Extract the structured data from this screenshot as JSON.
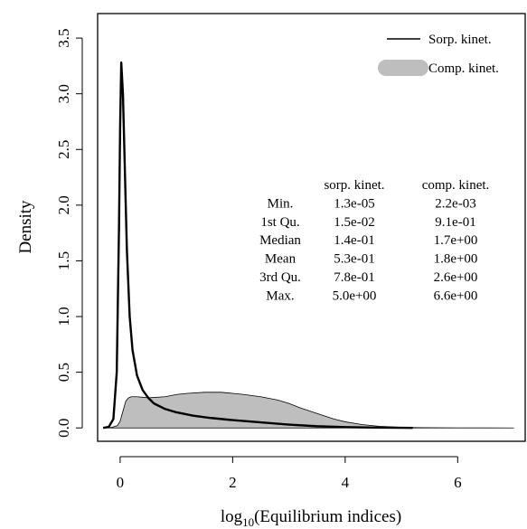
{
  "chart_data": {
    "type": "area",
    "xlabel": "log10(Equilibrium indices)",
    "xlabel_main": "log",
    "xlabel_sub": "10",
    "xlabel_rest": "(Equilibrium indices)",
    "ylabel": "Density",
    "xlim": [
      -0.4,
      7.2
    ],
    "ylim": [
      -0.12,
      3.72
    ],
    "x_ticks": [
      0,
      2,
      4,
      6
    ],
    "x_tick_labels": [
      "0",
      "2",
      "4",
      "6"
    ],
    "y_ticks": [
      0.0,
      0.5,
      1.0,
      1.5,
      2.0,
      2.5,
      3.0,
      3.5
    ],
    "y_tick_labels": [
      "0.0",
      "0.5",
      "1.0",
      "1.5",
      "2.0",
      "2.5",
      "3.0",
      "3.5"
    ],
    "legend": {
      "placement": "top-right",
      "entries": [
        {
          "label": "Sorp. kinet.",
          "kind": "line",
          "color": "#000000"
        },
        {
          "label": "Comp. kinet.",
          "kind": "fill",
          "color": "#bebebe"
        }
      ]
    },
    "series": [
      {
        "name": "Sorp. kinet.",
        "style": "line",
        "color": "#000000",
        "x": [
          -0.3,
          -0.2,
          -0.12,
          -0.06,
          -0.02,
          0.0,
          0.02,
          0.05,
          0.08,
          0.12,
          0.17,
          0.22,
          0.3,
          0.4,
          0.5,
          0.6,
          0.8,
          1.0,
          1.3,
          1.6,
          2.0,
          2.5,
          3.0,
          3.5,
          4.0,
          4.5,
          5.0,
          5.2
        ],
        "y": [
          0.0,
          0.01,
          0.08,
          0.5,
          1.8,
          2.7,
          3.28,
          3.0,
          2.4,
          1.6,
          1.0,
          0.7,
          0.47,
          0.34,
          0.27,
          0.22,
          0.17,
          0.14,
          0.11,
          0.09,
          0.07,
          0.05,
          0.03,
          0.015,
          0.007,
          0.003,
          0.001,
          0.0
        ]
      },
      {
        "name": "Comp. kinet.",
        "style": "area",
        "color": "#bebebe",
        "x": [
          -0.3,
          -0.15,
          -0.05,
          0.0,
          0.05,
          0.1,
          0.15,
          0.2,
          0.3,
          0.5,
          0.8,
          1.0,
          1.2,
          1.5,
          1.8,
          2.0,
          2.2,
          2.5,
          2.8,
          3.0,
          3.2,
          3.5,
          3.8,
          4.0,
          4.3,
          4.6,
          5.0,
          5.3,
          5.6,
          6.0,
          6.5,
          7.0
        ],
        "y": [
          0.0,
          0.005,
          0.02,
          0.06,
          0.15,
          0.24,
          0.27,
          0.28,
          0.28,
          0.27,
          0.28,
          0.3,
          0.31,
          0.32,
          0.32,
          0.31,
          0.3,
          0.28,
          0.25,
          0.22,
          0.18,
          0.13,
          0.08,
          0.055,
          0.03,
          0.015,
          0.006,
          0.003,
          0.0015,
          0.0005,
          0.0002,
          0.0
        ]
      }
    ],
    "summary_table": {
      "columns": [
        "sorp. kinet.",
        "comp. kinet."
      ],
      "rows": [
        {
          "label": "Min.",
          "values": [
            "1.3e-05",
            "2.2e-03"
          ]
        },
        {
          "label": "1st Qu.",
          "values": [
            "1.5e-02",
            "9.1e-01"
          ]
        },
        {
          "label": "Median",
          "values": [
            "1.4e-01",
            "1.7e+00"
          ]
        },
        {
          "label": "Mean",
          "values": [
            "5.3e-01",
            "1.8e+00"
          ]
        },
        {
          "label": "3rd Qu.",
          "values": [
            "7.8e-01",
            "2.6e+00"
          ]
        },
        {
          "label": "Max.",
          "values": [
            "5.0e+00",
            "6.6e+00"
          ]
        }
      ]
    },
    "grid": false
  }
}
